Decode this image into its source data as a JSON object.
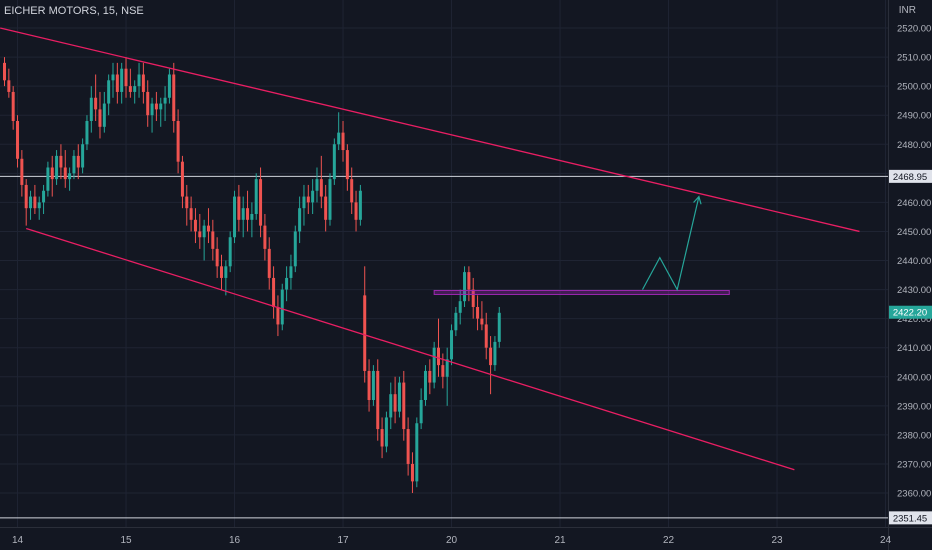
{
  "header": {
    "title": "EICHER MOTORS, 15, NSE",
    "currency": "INR"
  },
  "colors": {
    "background": "#131722",
    "up": "#26a69a",
    "down": "#ef5350",
    "channel": "#e91e63",
    "resistance": "#9c27b0",
    "projection": "#26a69a",
    "hline": "#d1d4dc",
    "axis_text": "#b2b5be",
    "last_price_bg": "#26a69a"
  },
  "chart_data": {
    "type": "candlestick",
    "title": "EICHER MOTORS, 15, NSE",
    "y_unit": "INR",
    "ylim": [
      2348,
      2524
    ],
    "y_ticks": [
      2360,
      2370,
      2380,
      2390,
      2400,
      2410,
      2420,
      2430,
      2440,
      2450,
      2460,
      2470,
      2480,
      2490,
      2500,
      2510,
      2520
    ],
    "x_ticks": [
      {
        "label": "14",
        "bar": 3
      },
      {
        "label": "15",
        "bar": 28
      },
      {
        "label": "16",
        "bar": 53
      },
      {
        "label": "17",
        "bar": 78
      },
      {
        "label": "20",
        "bar": 103
      },
      {
        "label": "21",
        "bar": 128
      },
      {
        "label": "22",
        "bar": 153
      },
      {
        "label": "23",
        "bar": 178
      },
      {
        "label": "24",
        "bar": 203
      }
    ],
    "candles": [
      [
        2508,
        2510,
        2500,
        2502
      ],
      [
        2502,
        2506,
        2496,
        2498
      ],
      [
        2498,
        2500,
        2485,
        2488
      ],
      [
        2488,
        2490,
        2472,
        2475
      ],
      [
        2475,
        2478,
        2462,
        2466
      ],
      [
        2466,
        2468,
        2452,
        2458
      ],
      [
        2458,
        2464,
        2454,
        2462
      ],
      [
        2462,
        2466,
        2456,
        2458
      ],
      [
        2458,
        2462,
        2454,
        2460
      ],
      [
        2460,
        2466,
        2456,
        2464
      ],
      [
        2464,
        2474,
        2462,
        2472
      ],
      [
        2472,
        2476,
        2462,
        2468
      ],
      [
        2468,
        2478,
        2466,
        2476
      ],
      [
        2476,
        2480,
        2468,
        2472
      ],
      [
        2472,
        2478,
        2465,
        2468
      ],
      [
        2468,
        2472,
        2464,
        2470
      ],
      [
        2470,
        2478,
        2468,
        2476
      ],
      [
        2476,
        2480,
        2468,
        2472
      ],
      [
        2472,
        2482,
        2470,
        2480
      ],
      [
        2480,
        2490,
        2478,
        2488
      ],
      [
        2488,
        2500,
        2484,
        2496
      ],
      [
        2496,
        2504,
        2488,
        2492
      ],
      [
        2492,
        2498,
        2482,
        2486
      ],
      [
        2486,
        2498,
        2484,
        2494
      ],
      [
        2494,
        2504,
        2490,
        2502
      ],
      [
        2502,
        2508,
        2496,
        2504
      ],
      [
        2504,
        2508,
        2494,
        2498
      ],
      [
        2498,
        2508,
        2494,
        2506
      ],
      [
        2506,
        2510,
        2496,
        2500
      ],
      [
        2500,
        2506,
        2496,
        2498
      ],
      [
        2498,
        2502,
        2494,
        2500
      ],
      [
        2500,
        2508,
        2496,
        2504
      ],
      [
        2504,
        2508,
        2494,
        2498
      ],
      [
        2498,
        2502,
        2486,
        2490
      ],
      [
        2490,
        2496,
        2484,
        2494
      ],
      [
        2494,
        2498,
        2488,
        2492
      ],
      [
        2492,
        2496,
        2486,
        2494
      ],
      [
        2494,
        2500,
        2488,
        2496
      ],
      [
        2496,
        2506,
        2494,
        2504
      ],
      [
        2504,
        2508,
        2484,
        2488
      ],
      [
        2488,
        2492,
        2470,
        2474
      ],
      [
        2474,
        2476,
        2458,
        2462
      ],
      [
        2462,
        2466,
        2452,
        2458
      ],
      [
        2458,
        2462,
        2450,
        2454
      ],
      [
        2454,
        2458,
        2446,
        2450
      ],
      [
        2450,
        2456,
        2444,
        2448
      ],
      [
        2448,
        2454,
        2440,
        2452
      ],
      [
        2452,
        2458,
        2446,
        2450
      ],
      [
        2450,
        2454,
        2440,
        2444
      ],
      [
        2444,
        2448,
        2434,
        2438
      ],
      [
        2438,
        2442,
        2430,
        2434
      ],
      [
        2434,
        2440,
        2428,
        2438
      ],
      [
        2438,
        2450,
        2436,
        2448
      ],
      [
        2448,
        2464,
        2446,
        2462
      ],
      [
        2462,
        2466,
        2450,
        2454
      ],
      [
        2454,
        2462,
        2448,
        2458
      ],
      [
        2458,
        2464,
        2450,
        2454
      ],
      [
        2454,
        2460,
        2448,
        2456
      ],
      [
        2456,
        2470,
        2454,
        2468
      ],
      [
        2468,
        2472,
        2448,
        2452
      ],
      [
        2452,
        2456,
        2440,
        2444
      ],
      [
        2444,
        2448,
        2430,
        2434
      ],
      [
        2434,
        2438,
        2420,
        2424
      ],
      [
        2424,
        2428,
        2414,
        2418
      ],
      [
        2418,
        2432,
        2416,
        2430
      ],
      [
        2430,
        2438,
        2426,
        2434
      ],
      [
        2434,
        2442,
        2430,
        2438
      ],
      [
        2438,
        2452,
        2436,
        2450
      ],
      [
        2450,
        2462,
        2446,
        2458
      ],
      [
        2458,
        2466,
        2452,
        2462
      ],
      [
        2462,
        2466,
        2456,
        2460
      ],
      [
        2460,
        2468,
        2456,
        2464
      ],
      [
        2464,
        2472,
        2460,
        2468
      ],
      [
        2468,
        2476,
        2458,
        2462
      ],
      [
        2462,
        2466,
        2450,
        2454
      ],
      [
        2454,
        2470,
        2452,
        2468
      ],
      [
        2468,
        2482,
        2466,
        2480
      ],
      [
        2480,
        2491,
        2478,
        2484
      ],
      [
        2484,
        2488,
        2474,
        2478
      ],
      [
        2478,
        2480,
        2464,
        2468
      ],
      [
        2468,
        2472,
        2456,
        2460
      ],
      [
        2460,
        2464,
        2450,
        2454
      ],
      [
        2454,
        2466,
        2452,
        2464
      ],
      [
        2428,
        2438,
        2398,
        2402
      ],
      [
        2402,
        2406,
        2388,
        2392
      ],
      [
        2392,
        2404,
        2390,
        2402
      ],
      [
        2402,
        2406,
        2378,
        2382
      ],
      [
        2382,
        2386,
        2372,
        2376
      ],
      [
        2376,
        2388,
        2374,
        2386
      ],
      [
        2386,
        2398,
        2382,
        2394
      ],
      [
        2394,
        2400,
        2384,
        2388
      ],
      [
        2388,
        2400,
        2386,
        2398
      ],
      [
        2398,
        2402,
        2378,
        2382
      ],
      [
        2382,
        2386,
        2366,
        2370
      ],
      [
        2370,
        2374,
        2360,
        2364
      ],
      [
        2364,
        2386,
        2362,
        2384
      ],
      [
        2384,
        2396,
        2382,
        2392
      ],
      [
        2392,
        2404,
        2390,
        2402
      ],
      [
        2402,
        2406,
        2394,
        2398
      ],
      [
        2398,
        2412,
        2396,
        2410
      ],
      [
        2410,
        2420,
        2400,
        2404
      ],
      [
        2404,
        2408,
        2396,
        2400
      ],
      [
        2400,
        2410,
        2390,
        2406
      ],
      [
        2406,
        2418,
        2404,
        2416
      ],
      [
        2416,
        2424,
        2414,
        2422
      ],
      [
        2422,
        2430,
        2418,
        2426
      ],
      [
        2426,
        2438,
        2424,
        2436
      ],
      [
        2436,
        2438,
        2426,
        2430
      ],
      [
        2430,
        2434,
        2420,
        2424
      ],
      [
        2424,
        2428,
        2416,
        2420
      ],
      [
        2420,
        2426,
        2416,
        2418
      ],
      [
        2418,
        2422,
        2406,
        2410
      ],
      [
        2410,
        2414,
        2394,
        2404
      ],
      [
        2404,
        2414,
        2402,
        2412
      ],
      [
        2412,
        2424,
        2410,
        2422
      ]
    ],
    "channel_upper": {
      "from": {
        "bar": -1,
        "price": 2520
      },
      "to": {
        "bar": 197,
        "price": 2450
      }
    },
    "channel_lower": {
      "from": {
        "bar": 5,
        "price": 2451
      },
      "to": {
        "bar": 182,
        "price": 2368
      }
    },
    "resistance": {
      "price": 2429,
      "from_bar": 99,
      "to_bar": 167
    },
    "projection": [
      {
        "bar": 147,
        "price": 2430
      },
      {
        "bar": 151,
        "price": 2441
      },
      {
        "bar": 155,
        "price": 2430
      },
      {
        "bar": 160,
        "price": 2462
      }
    ],
    "horizontal_lines": [
      {
        "price": 2468.95,
        "label": "2468.95"
      },
      {
        "price": 2351.45,
        "label": "2351.45"
      }
    ],
    "last_price": {
      "price": 2422.2,
      "label": "2422.20"
    }
  }
}
